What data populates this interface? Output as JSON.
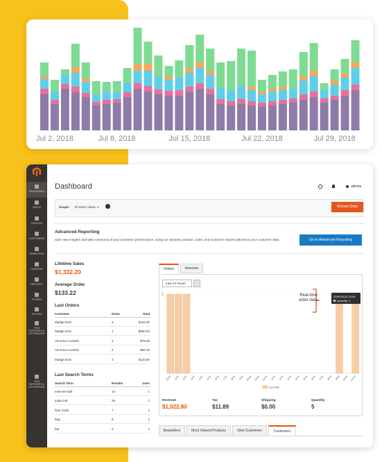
{
  "chart_data": [
    {
      "type": "stacked-bar",
      "categories": [
        null,
        "Jul 2, 2018",
        null,
        null,
        null,
        null,
        null,
        "Jul 8, 2018",
        null,
        null,
        null,
        null,
        null,
        null,
        "Jul 15, 2018",
        null,
        null,
        null,
        null,
        null,
        null,
        "Jul 22, 2018",
        null,
        null,
        null,
        null,
        null,
        null,
        "Jul 29, 2018",
        null,
        null
      ],
      "series": [
        {
          "color": "#8e7ba8",
          "values": [
            52,
            38,
            60,
            55,
            48,
            36,
            38,
            40,
            48,
            60,
            56,
            52,
            50,
            50,
            55,
            60,
            52,
            38,
            36,
            38,
            36,
            34,
            36,
            38,
            40,
            44,
            48,
            40,
            44,
            50,
            58
          ]
        },
        {
          "color": "#e8709c",
          "values": [
            8,
            6,
            7,
            8,
            6,
            5,
            6,
            5,
            7,
            8,
            8,
            7,
            7,
            8,
            8,
            8,
            8,
            7,
            6,
            7,
            6,
            6,
            6,
            6,
            6,
            8,
            8,
            6,
            6,
            8,
            8
          ]
        },
        {
          "color": "#5fcfe9",
          "values": [
            14,
            12,
            13,
            20,
            16,
            10,
            12,
            10,
            14,
            18,
            22,
            18,
            16,
            18,
            20,
            22,
            20,
            16,
            16,
            18,
            16,
            12,
            14,
            14,
            14,
            20,
            22,
            12,
            16,
            18,
            24
          ]
        },
        {
          "color": "#f3a860",
          "values": [
            4,
            0,
            0,
            8,
            5,
            0,
            0,
            0,
            0,
            10,
            10,
            0,
            5,
            0,
            6,
            8,
            6,
            0,
            0,
            0,
            5,
            4,
            4,
            5,
            0,
            6,
            8,
            0,
            6,
            6,
            8
          ]
        },
        {
          "color": "#7edb93",
          "values": [
            20,
            17,
            8,
            34,
            23,
            20,
            14,
            16,
            21,
            52,
            32,
            31,
            15,
            25,
            34,
            40,
            32,
            37,
            42,
            55,
            52,
            17,
            20,
            22,
            28,
            35,
            40,
            10,
            16,
            21,
            32
          ]
        }
      ]
    },
    {
      "type": "bar",
      "categories": [
        "12AM",
        "1AM",
        "2AM",
        "3AM",
        "4AM",
        "5AM",
        "6AM",
        "7AM",
        "8AM",
        "9AM",
        "10AM",
        "11AM",
        "12PM",
        "1PM",
        "2PM",
        "3PM",
        "4PM",
        "5PM",
        "6PM",
        "7PM",
        "8PM",
        "9PM",
        "10PM",
        "11PM"
      ],
      "values": [
        1,
        1,
        1,
        0,
        0,
        0,
        0,
        0,
        0,
        0,
        0,
        0,
        0,
        0,
        0,
        0,
        0,
        0,
        0,
        0,
        0,
        1,
        0,
        1
      ],
      "color": "#f6cda6",
      "ylim": [
        0,
        1
      ],
      "yticks": [
        1
      ],
      "legend": "Quantity",
      "annotation": "Real-time order data",
      "tooltip": {
        "title": "2020-05-20 10:00",
        "text": "Quantity: 1"
      }
    }
  ],
  "sidebar": [
    "DASHBOARD",
    "SALES",
    "CATALOG",
    "CUSTOMERS",
    "MARKETING",
    "CONTENT",
    "REPORTS",
    "STORES",
    "SYSTEM",
    "FIND PARTNERS & EXTENSIONS",
    "FIND PARTNERS & EXTENSIONS"
  ],
  "header": {
    "title": "Dashboard",
    "user": "admin"
  },
  "scope": {
    "label": "Scope:",
    "value": "All Store Views",
    "button": "Reload Data"
  },
  "advanced_reporting": {
    "title": "Advanced Reporting",
    "text": "Gain new insights and take command of your business' performance, using our dynamic product, order, and customer reports tailored to your customer data.",
    "button": "Go to Advanced Reporting"
  },
  "stats": [
    {
      "label": "Lifetime Sales",
      "value": "$1,332.20"
    },
    {
      "label": "Average Order",
      "value": "$133.22"
    }
  ],
  "last_orders": {
    "title": "Last Orders",
    "columns": [
      "Customer",
      "Items",
      "Total"
    ],
    "rows": [
      [
        "Madge Ents",
        2,
        "$184.00"
      ],
      [
        "Madge Ents",
        1,
        "$560.00"
      ],
      [
        "Veronica Costello",
        2,
        "$78.00"
      ],
      [
        "Veronica Costello",
        2,
        "$66.00"
      ],
      [
        "Madge Ents",
        3,
        "$134.80"
      ]
    ]
  },
  "last_search_terms": {
    "title": "Last Search Terms",
    "columns": [
      "Search Term",
      "Results",
      "Uses"
    ],
    "rows": [
      [
        "exercise ball",
        13,
        1
      ],
      [
        "yoga mat",
        26,
        1
      ],
      [
        "face mask",
        7,
        1
      ],
      [
        "bag",
        8,
        1
      ],
      [
        "hat",
        0,
        1
      ]
    ]
  },
  "tabs": [
    "Orders",
    "Amounts"
  ],
  "range": "Last 24 Hours",
  "totals": [
    {
      "label": "Revenue",
      "value": "$1,022.80"
    },
    {
      "label": "Tax",
      "value": "$11.89"
    },
    {
      "label": "Shipping",
      "value": "$0.00"
    },
    {
      "label": "Quantity",
      "value": 5
    }
  ],
  "bottom_tabs": [
    "Bestsellers",
    "Most Viewed Products",
    "New Customers",
    "Customers"
  ]
}
